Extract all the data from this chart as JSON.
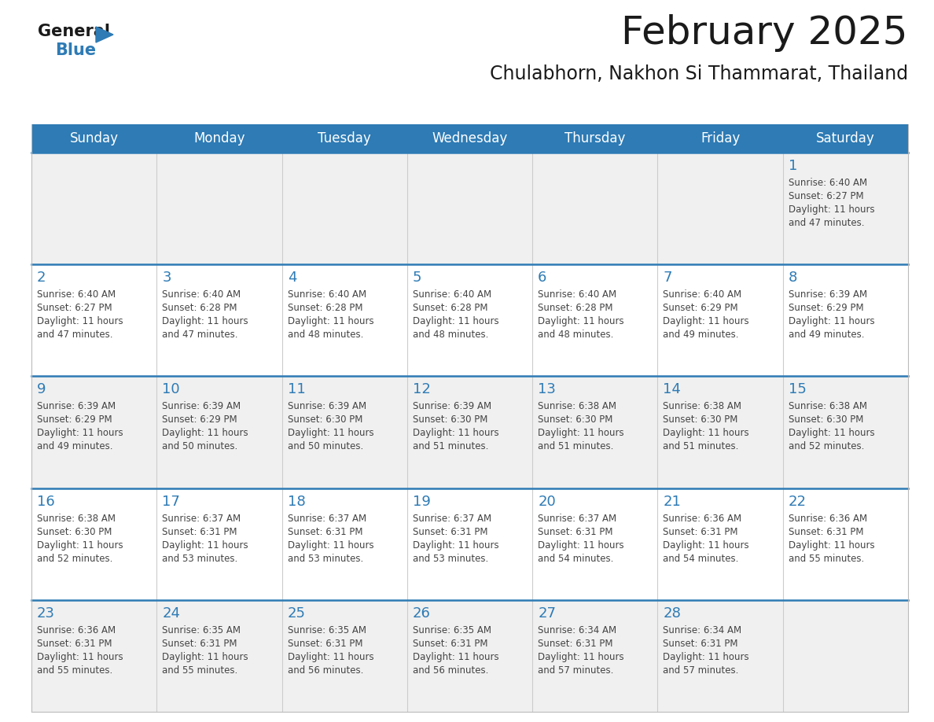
{
  "title": "February 2025",
  "subtitle": "Chulabhorn, Nakhon Si Thammarat, Thailand",
  "days_of_week": [
    "Sunday",
    "Monday",
    "Tuesday",
    "Wednesday",
    "Thursday",
    "Friday",
    "Saturday"
  ],
  "header_bg": "#2E7BB5",
  "header_text": "#FFFFFF",
  "cell_bg_light": "#F0F0F0",
  "cell_bg_white": "#FFFFFF",
  "divider_color": "#2E7BB5",
  "text_color": "#444444",
  "day_number_color": "#2E7BB5",
  "title_color": "#1a1a1a",
  "subtitle_color": "#1a1a1a",
  "logo_general_color": "#1a1a1a",
  "logo_blue_color": "#2E7BB5",
  "calendar_data": [
    [
      null,
      null,
      null,
      null,
      null,
      null,
      {
        "day": 1,
        "sunrise": "6:40 AM",
        "sunset": "6:27 PM",
        "daylight_hours": 11,
        "daylight_minutes": 47
      }
    ],
    [
      {
        "day": 2,
        "sunrise": "6:40 AM",
        "sunset": "6:27 PM",
        "daylight_hours": 11,
        "daylight_minutes": 47
      },
      {
        "day": 3,
        "sunrise": "6:40 AM",
        "sunset": "6:28 PM",
        "daylight_hours": 11,
        "daylight_minutes": 47
      },
      {
        "day": 4,
        "sunrise": "6:40 AM",
        "sunset": "6:28 PM",
        "daylight_hours": 11,
        "daylight_minutes": 48
      },
      {
        "day": 5,
        "sunrise": "6:40 AM",
        "sunset": "6:28 PM",
        "daylight_hours": 11,
        "daylight_minutes": 48
      },
      {
        "day": 6,
        "sunrise": "6:40 AM",
        "sunset": "6:28 PM",
        "daylight_hours": 11,
        "daylight_minutes": 48
      },
      {
        "day": 7,
        "sunrise": "6:40 AM",
        "sunset": "6:29 PM",
        "daylight_hours": 11,
        "daylight_minutes": 49
      },
      {
        "day": 8,
        "sunrise": "6:39 AM",
        "sunset": "6:29 PM",
        "daylight_hours": 11,
        "daylight_minutes": 49
      }
    ],
    [
      {
        "day": 9,
        "sunrise": "6:39 AM",
        "sunset": "6:29 PM",
        "daylight_hours": 11,
        "daylight_minutes": 49
      },
      {
        "day": 10,
        "sunrise": "6:39 AM",
        "sunset": "6:29 PM",
        "daylight_hours": 11,
        "daylight_minutes": 50
      },
      {
        "day": 11,
        "sunrise": "6:39 AM",
        "sunset": "6:30 PM",
        "daylight_hours": 11,
        "daylight_minutes": 50
      },
      {
        "day": 12,
        "sunrise": "6:39 AM",
        "sunset": "6:30 PM",
        "daylight_hours": 11,
        "daylight_minutes": 51
      },
      {
        "day": 13,
        "sunrise": "6:38 AM",
        "sunset": "6:30 PM",
        "daylight_hours": 11,
        "daylight_minutes": 51
      },
      {
        "day": 14,
        "sunrise": "6:38 AM",
        "sunset": "6:30 PM",
        "daylight_hours": 11,
        "daylight_minutes": 51
      },
      {
        "day": 15,
        "sunrise": "6:38 AM",
        "sunset": "6:30 PM",
        "daylight_hours": 11,
        "daylight_minutes": 52
      }
    ],
    [
      {
        "day": 16,
        "sunrise": "6:38 AM",
        "sunset": "6:30 PM",
        "daylight_hours": 11,
        "daylight_minutes": 52
      },
      {
        "day": 17,
        "sunrise": "6:37 AM",
        "sunset": "6:31 PM",
        "daylight_hours": 11,
        "daylight_minutes": 53
      },
      {
        "day": 18,
        "sunrise": "6:37 AM",
        "sunset": "6:31 PM",
        "daylight_hours": 11,
        "daylight_minutes": 53
      },
      {
        "day": 19,
        "sunrise": "6:37 AM",
        "sunset": "6:31 PM",
        "daylight_hours": 11,
        "daylight_minutes": 53
      },
      {
        "day": 20,
        "sunrise": "6:37 AM",
        "sunset": "6:31 PM",
        "daylight_hours": 11,
        "daylight_minutes": 54
      },
      {
        "day": 21,
        "sunrise": "6:36 AM",
        "sunset": "6:31 PM",
        "daylight_hours": 11,
        "daylight_minutes": 54
      },
      {
        "day": 22,
        "sunrise": "6:36 AM",
        "sunset": "6:31 PM",
        "daylight_hours": 11,
        "daylight_minutes": 55
      }
    ],
    [
      {
        "day": 23,
        "sunrise": "6:36 AM",
        "sunset": "6:31 PM",
        "daylight_hours": 11,
        "daylight_minutes": 55
      },
      {
        "day": 24,
        "sunrise": "6:35 AM",
        "sunset": "6:31 PM",
        "daylight_hours": 11,
        "daylight_minutes": 55
      },
      {
        "day": 25,
        "sunrise": "6:35 AM",
        "sunset": "6:31 PM",
        "daylight_hours": 11,
        "daylight_minutes": 56
      },
      {
        "day": 26,
        "sunrise": "6:35 AM",
        "sunset": "6:31 PM",
        "daylight_hours": 11,
        "daylight_minutes": 56
      },
      {
        "day": 27,
        "sunrise": "6:34 AM",
        "sunset": "6:31 PM",
        "daylight_hours": 11,
        "daylight_minutes": 57
      },
      {
        "day": 28,
        "sunrise": "6:34 AM",
        "sunset": "6:31 PM",
        "daylight_hours": 11,
        "daylight_minutes": 57
      },
      null
    ]
  ]
}
